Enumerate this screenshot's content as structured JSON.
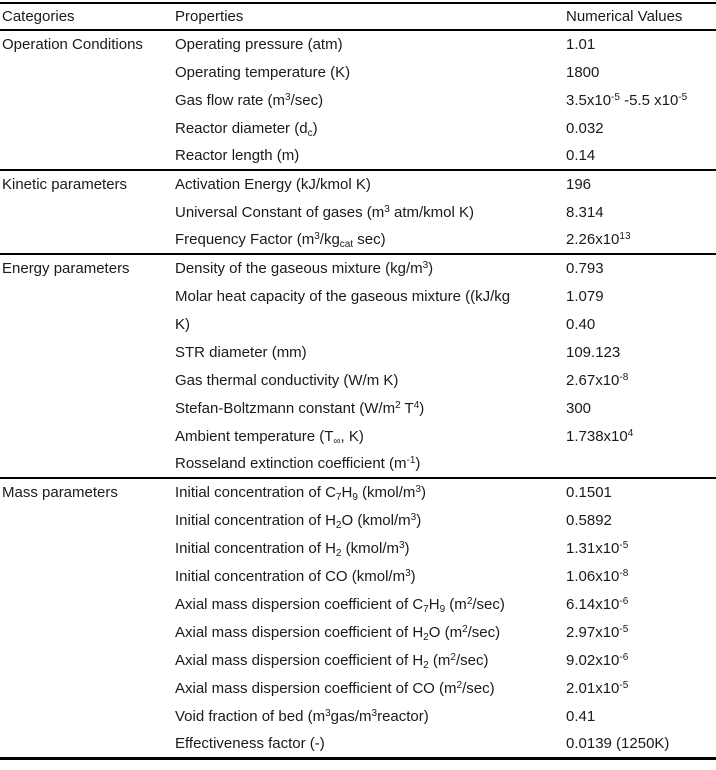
{
  "colors": {
    "text": "#1a1a1a",
    "rule": "#000000",
    "background": "#ffffff"
  },
  "table": {
    "headers": [
      "Categories",
      "Properties",
      "Numerical Values"
    ],
    "sections": [
      {
        "category": "Operation Conditions",
        "rows": [
          {
            "property": "Operating pressure (atm)",
            "value": "1.01"
          },
          {
            "property": "Operating temperature (K)",
            "value": "1800"
          },
          {
            "property": "Gas flow rate (m^{3}/sec)",
            "value": "3.5x10^{-5} -5.5 x10^{-5}"
          },
          {
            "property": "Reactor diameter (d_{c})",
            "value": "0.032"
          },
          {
            "property": "Reactor length (m)",
            "value": "0.14"
          }
        ]
      },
      {
        "category": "Kinetic parameters",
        "rows": [
          {
            "property": "Activation Energy (kJ/kmol K)",
            "value": "196"
          },
          {
            "property": "Universal Constant of gases (m^{3} atm/kmol K)",
            "value": "8.314"
          },
          {
            "property": "Frequency Factor (m^{3}/kg_{cat} sec)",
            "value": "2.26x10^{13}"
          }
        ]
      },
      {
        "category": "Energy parameters",
        "rows": [
          {
            "property": "Density of the gaseous mixture (kg/m^{3})",
            "value": "0.793"
          },
          {
            "property": "Molar heat capacity of the gaseous mixture ((kJ/kg",
            "value": "1.079"
          },
          {
            "property": "K)",
            "value": "0.40"
          },
          {
            "property": "STR diameter (mm)",
            "value": "109.123"
          },
          {
            "property": "Gas thermal conductivity (W/m K)",
            "value": "2.67x10^{-8}"
          },
          {
            "property": "Stefan-Boltzmann constant (W/m^{2} T^{4})",
            "value": "300"
          },
          {
            "property": "Ambient temperature (T_{∞}, K)",
            "value": "1.738x10^{4}"
          },
          {
            "property": "Rosseland extinction coefficient (m^{-1})",
            "value": ""
          }
        ]
      },
      {
        "category": "Mass parameters",
        "rows": [
          {
            "property": "Initial concentration of C_{7}H_{9} (kmol/m^{3})",
            "value": "0.1501"
          },
          {
            "property": "Initial concentration of H_{2}O (kmol/m^{3})",
            "value": "0.5892"
          },
          {
            "property": "Initial concentration of H_{2} (kmol/m^{3})",
            "value": "1.31x10^{-5}"
          },
          {
            "property": "Initial concentration of CO (kmol/m^{3})",
            "value": "1.06x10^{-8}"
          },
          {
            "property": "Axial mass dispersion coefficient of C_{7}H_{9} (m^{2}/sec)",
            "value": "6.14x10^{-6}"
          },
          {
            "property": "Axial mass dispersion coefficient of H_{2}O (m^{2}/sec)",
            "value": "2.97x10^{-5}"
          },
          {
            "property": "Axial mass dispersion coefficient of H_{2} (m^{2}/sec)",
            "value": "9.02x10^{-6}"
          },
          {
            "property": "Axial mass dispersion coefficient of CO (m^{2}/sec)",
            "value": "2.01x10^{-5}"
          },
          {
            "property": "Void fraction of bed (m^{3}gas/m^{3}reactor)",
            "value": "0.41"
          },
          {
            "property": "Effectiveness factor (-)",
            "value": "0.0139 (1250K)"
          }
        ]
      }
    ]
  }
}
